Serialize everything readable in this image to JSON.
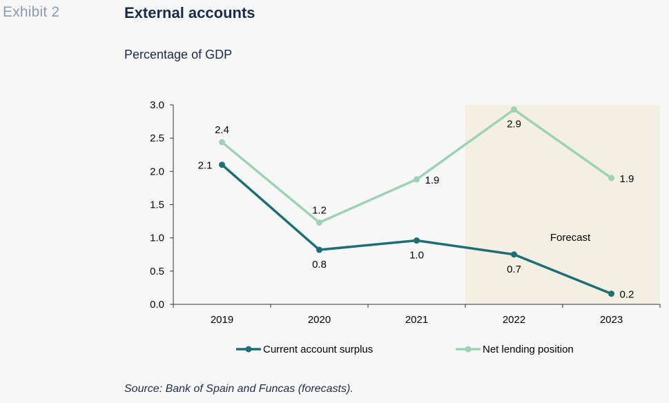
{
  "header": {
    "exhibit": "Exhibit 2",
    "title": "External accounts",
    "subtitle": "Percentage of GDP"
  },
  "footer": {
    "source": "Source: Bank of Spain and Funcas (forecasts)."
  },
  "colors": {
    "current_account": "#1d6e76",
    "net_lending": "#9dd3b4",
    "forecast_band": "#f3efe2",
    "axis": "#333333",
    "text": "#000000"
  },
  "chart_data": {
    "type": "line",
    "title": "",
    "xlabel": "",
    "ylabel": "",
    "categories": [
      "2019",
      "2020",
      "2021",
      "2022",
      "2023"
    ],
    "ylim": [
      0,
      3
    ],
    "yticks": [
      "0.0",
      "0.5",
      "1.0",
      "1.5",
      "2.0",
      "2.5",
      "3.0"
    ],
    "grid": false,
    "legend_position": "bottom",
    "forecast": {
      "label": "Forecast",
      "from": "2022",
      "to": "2023"
    },
    "series": [
      {
        "name": "Current account surplus",
        "values": [
          2.1,
          0.82,
          0.96,
          0.75,
          0.16
        ],
        "labels": [
          "2.1",
          "0.8",
          "1.0",
          "0.7",
          "0.2"
        ],
        "label_positions": [
          "left",
          "below",
          "below",
          "below",
          "right"
        ]
      },
      {
        "name": "Net lending position",
        "values": [
          2.44,
          1.23,
          1.88,
          2.93,
          1.9
        ],
        "labels": [
          "2.4",
          "1.2",
          "1.9",
          "2.9",
          "1.9"
        ],
        "label_positions": [
          "above",
          "above",
          "right",
          "below",
          "right"
        ]
      }
    ]
  }
}
